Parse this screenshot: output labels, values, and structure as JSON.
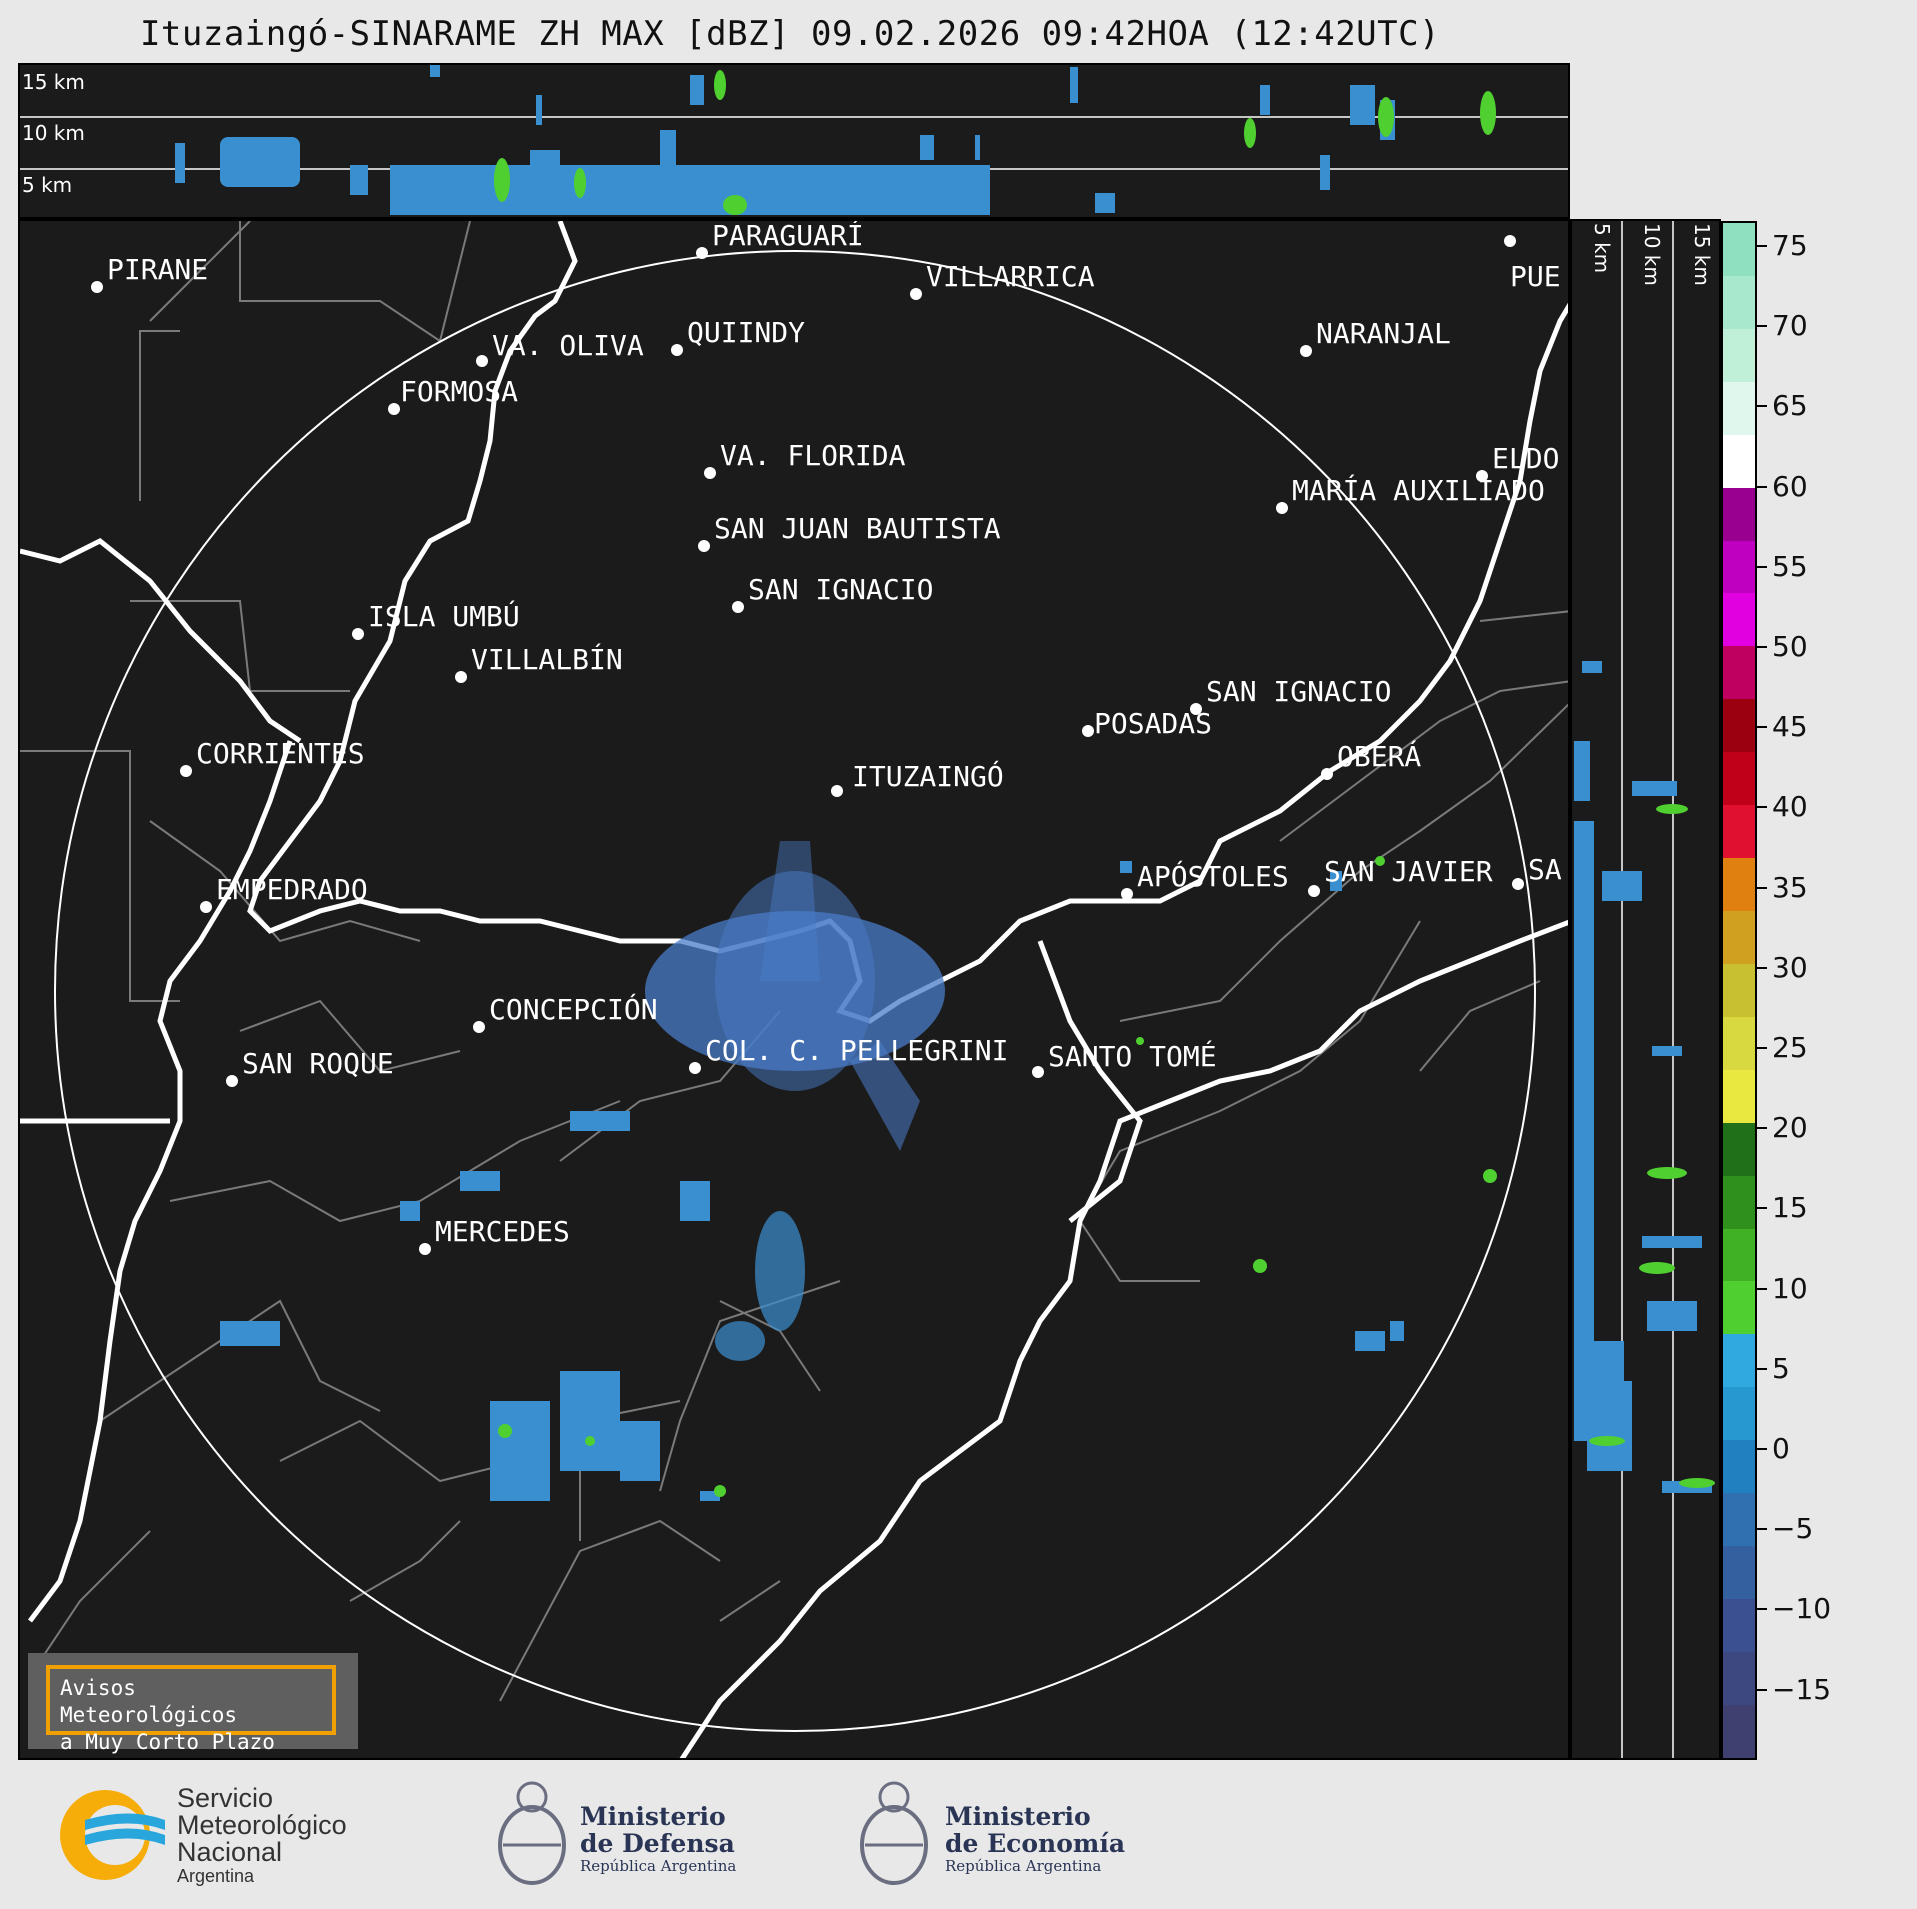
{
  "title": "Ituzaingó-SINARAME ZH MAX [dBZ] 09.02.2026 09:42HOA (12:42UTC)",
  "top_panel": {
    "height_labels": [
      "15 km",
      "10 km",
      "5 km"
    ]
  },
  "side_panel": {
    "height_labels": [
      "5 km",
      "10 km",
      "15 km"
    ]
  },
  "places": [
    {
      "name": "PARAGUARÍ"
    },
    {
      "name": "PIRANE"
    },
    {
      "name": "VILLARRICA"
    },
    {
      "name": "QUIINDY"
    },
    {
      "name": "VA. OLIVA"
    },
    {
      "name": "NARANJAL"
    },
    {
      "name": "FORMOSA"
    },
    {
      "name": "VA. FLORIDA"
    },
    {
      "name": "ELDO"
    },
    {
      "name": "MARÍA AUXILIADO"
    },
    {
      "name": "SAN JUAN BAUTISTA"
    },
    {
      "name": "SAN IGNACIO"
    },
    {
      "name": "ISLA UMBÚ"
    },
    {
      "name": "VILLALBÍN"
    },
    {
      "name": "SAN IGNACIO"
    },
    {
      "name": "POSADAS"
    },
    {
      "name": "CORRIENTES"
    },
    {
      "name": "ITUZAINGÓ"
    },
    {
      "name": "OBERÁ"
    },
    {
      "name": "APÓSTOLES"
    },
    {
      "name": "SAN JAVIER"
    },
    {
      "name": "SA"
    },
    {
      "name": "EMPEDRADO"
    },
    {
      "name": "CONCEPCIÓN"
    },
    {
      "name": "COL. C. PELLEGRINI"
    },
    {
      "name": "SANTO TOMÉ"
    },
    {
      "name": "SAN ROQUE"
    },
    {
      "name": "MERCEDES"
    },
    {
      "name": "PUE"
    }
  ],
  "colorbar": {
    "ticks": [
      "75",
      "70",
      "65",
      "60",
      "55",
      "50",
      "45",
      "40",
      "35",
      "30",
      "25",
      "20",
      "15",
      "10",
      "5",
      "0",
      "−5",
      "−10",
      "−15"
    ],
    "colors": [
      "#8fe0c0",
      "#a8e8cc",
      "#c0f0d8",
      "#e0f7ee",
      "#ffffff",
      "#9a0090",
      "#c000c0",
      "#e000e0",
      "#c00060",
      "#9a0010",
      "#c00018",
      "#e01030",
      "#e08010",
      "#d0a020",
      "#c8c030",
      "#d8d840",
      "#e8e840",
      "#20701a",
      "#30901e",
      "#40b024",
      "#50d030",
      "#30a8e0",
      "#2898d0",
      "#2080c0",
      "#3070b0",
      "#3560a0",
      "#3a5090",
      "#3d4880",
      "#404070"
    ]
  },
  "alert": {
    "line1": "Avisos Meteorológicos",
    "line2": "a Muy Corto Plazo"
  },
  "logos": {
    "smn": {
      "line1": "Servicio",
      "line2": "Meteorológico",
      "line3": "Nacional",
      "line4": "Argentina"
    },
    "defensa": {
      "line1": "Ministerio",
      "line2": "de Defensa",
      "line3": "República Argentina"
    },
    "economia": {
      "line1": "Ministerio",
      "line2": "de Economía",
      "line3": "República Argentina"
    }
  }
}
